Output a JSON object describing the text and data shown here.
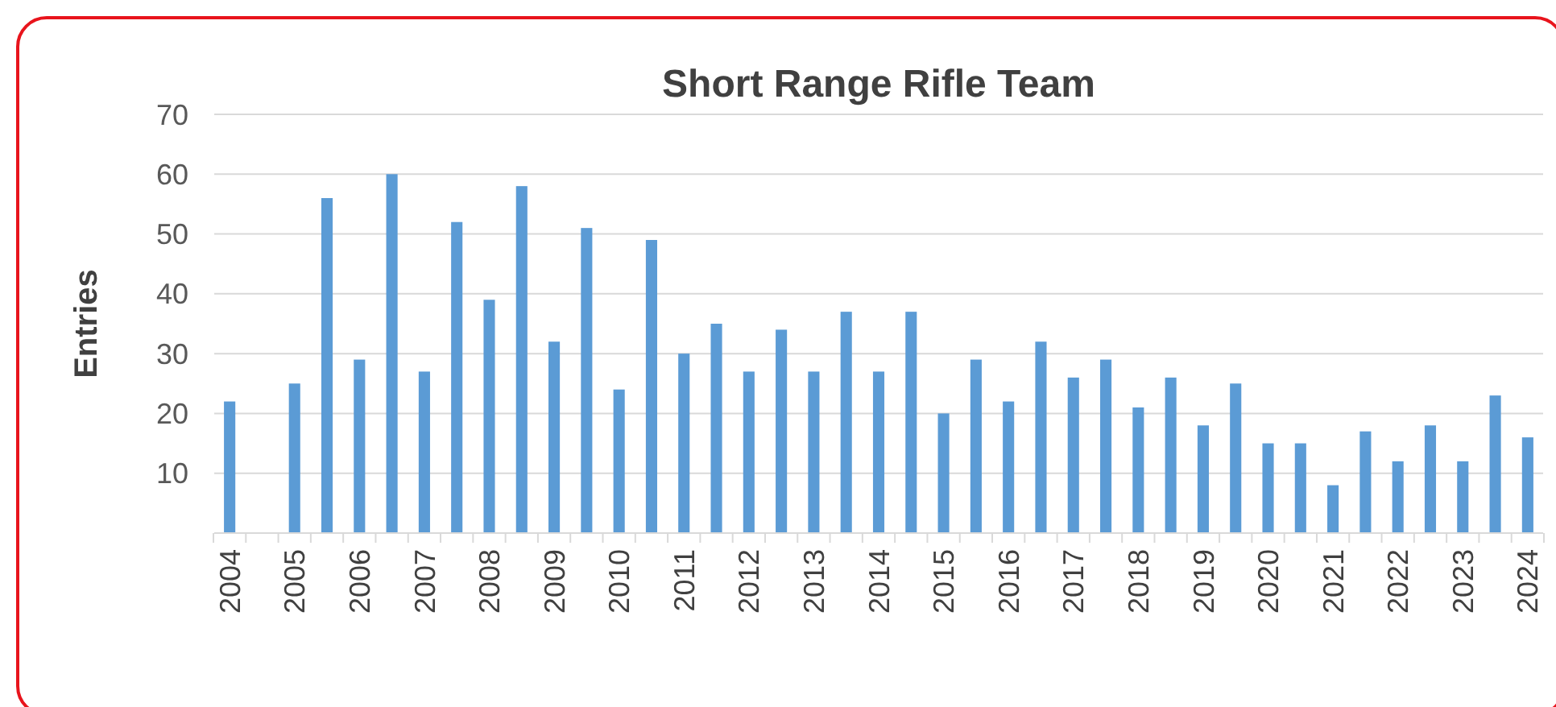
{
  "chart_data": {
    "type": "bar",
    "title": "Short Range Rifle Team",
    "ylabel": "Entries",
    "categories": [
      "2004",
      null,
      "2005",
      null,
      "2006",
      null,
      "2007",
      null,
      "2008",
      null,
      "2009",
      null,
      "2010",
      null,
      "2011",
      null,
      "2012",
      null,
      "2013",
      null,
      "2014",
      null,
      "2015",
      null,
      "2016",
      null,
      "2017",
      null,
      "2018",
      null,
      "2019",
      null,
      "2020",
      null,
      "2021",
      null,
      "2022",
      null,
      "2023",
      null,
      "2024"
    ],
    "values": [
      22,
      null,
      25,
      56,
      29,
      60,
      27,
      52,
      39,
      58,
      32,
      51,
      24,
      49,
      30,
      35,
      27,
      34,
      27,
      37,
      27,
      37,
      20,
      29,
      22,
      32,
      26,
      29,
      21,
      26,
      18,
      25,
      15,
      15,
      8,
      17,
      12,
      18,
      12,
      23,
      16
    ],
    "color": "#5b9bd5",
    "ylim": [
      0,
      70
    ],
    "yticks": [
      10,
      20,
      30,
      40,
      50,
      60,
      70
    ],
    "grid": "y"
  }
}
